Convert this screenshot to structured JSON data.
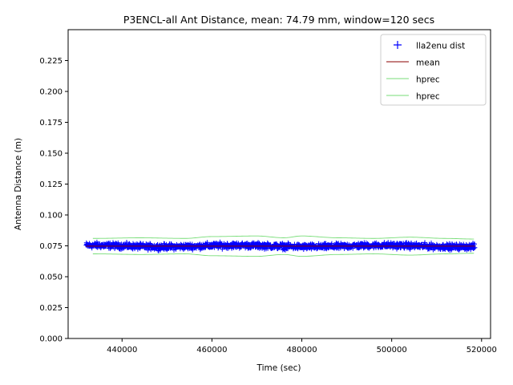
{
  "chart_data": {
    "type": "line",
    "title": "P3ENCL-all Ant Distance, mean: 74.79 mm, window=120 secs",
    "xlabel": "Time (sec)",
    "ylabel": "Antenna Distance (m)",
    "xlim": [
      428000,
      522000
    ],
    "ylim": [
      0.0,
      0.25
    ],
    "xticks": [
      440000,
      460000,
      480000,
      500000,
      520000
    ],
    "xtick_labels": [
      "440000",
      "460000",
      "480000",
      "500000",
      "520000"
    ],
    "yticks": [
      0.0,
      0.025,
      0.05,
      0.075,
      0.1,
      0.125,
      0.15,
      0.175,
      0.2,
      0.225
    ],
    "ytick_labels": [
      "0.000",
      "0.025",
      "0.050",
      "0.075",
      "0.100",
      "0.125",
      "0.150",
      "0.175",
      "0.200",
      "0.225"
    ],
    "grid": false,
    "legend_position": "top-right",
    "x_range": [
      432000,
      518500
    ],
    "series": [
      {
        "name": "lla2enu dist",
        "style": "marker-plus",
        "color": "#0000ff",
        "center": 0.0748,
        "spread": 0.0035
      },
      {
        "name": "mean",
        "style": "line",
        "color": "#8b0000",
        "value": 0.07479
      },
      {
        "name": "hprec",
        "style": "line",
        "color": "#77dd77",
        "x": [
          434000,
          444000,
          454000,
          460000,
          470000,
          476000,
          480000,
          488000,
          496000,
          504000,
          512000,
          518000
        ],
        "values": [
          0.081,
          0.0815,
          0.081,
          0.0825,
          0.083,
          0.0815,
          0.083,
          0.0815,
          0.081,
          0.082,
          0.081,
          0.0805
        ]
      },
      {
        "name": "hprec",
        "style": "line",
        "color": "#77dd77",
        "x": [
          434000,
          444000,
          454000,
          460000,
          470000,
          476000,
          480000,
          488000,
          496000,
          504000,
          512000,
          518000
        ],
        "values": [
          0.0685,
          0.068,
          0.0685,
          0.067,
          0.0665,
          0.068,
          0.0665,
          0.068,
          0.0685,
          0.0675,
          0.0685,
          0.069
        ]
      }
    ]
  },
  "colors": {
    "points": "#0000ff",
    "mean": "#8b0000",
    "hprec": "#77dd77",
    "axes": "#000000",
    "background": "#ffffff"
  }
}
